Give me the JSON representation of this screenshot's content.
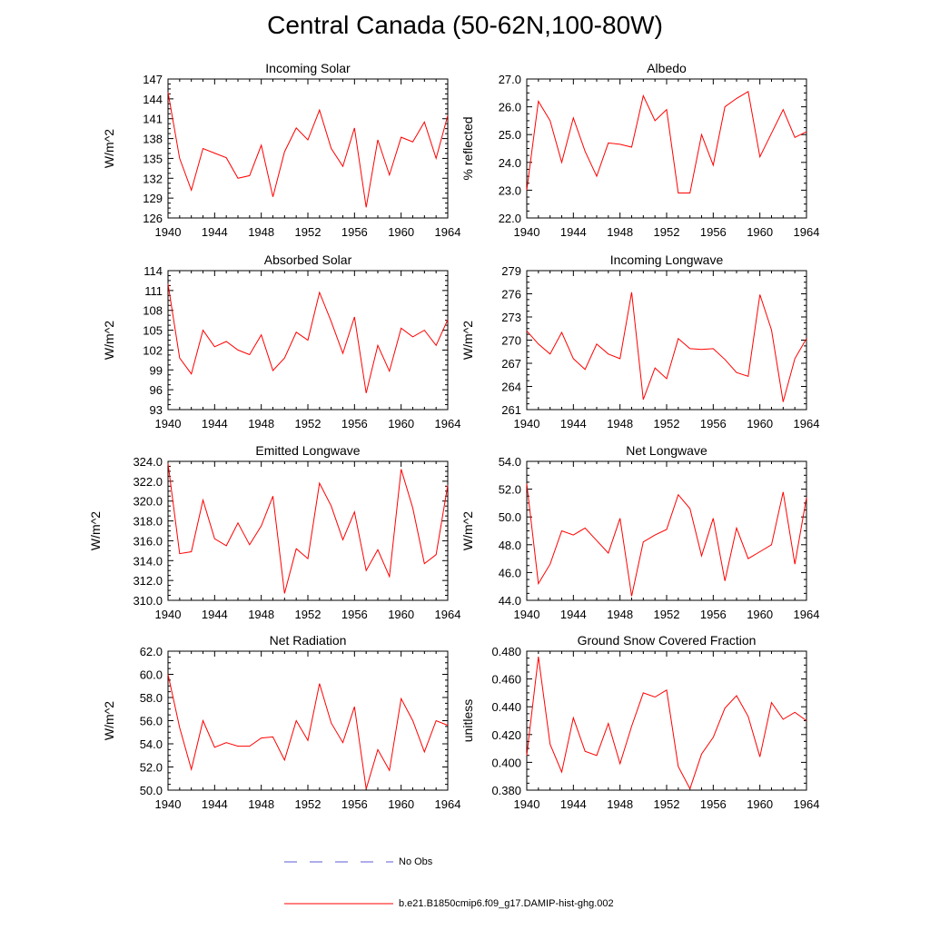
{
  "figure_title": "Central Canada (50-62N,100-80W)",
  "colors": {
    "model_line": "#ff0000",
    "obs_line": "#5b5bd6",
    "axis": "#000000"
  },
  "legend": {
    "obs_label": "No Obs",
    "model_label": "b.e21.B1850cmip6.f09_g17.DAMIP-hist-ghg.002"
  },
  "chart_data": [
    {
      "type": "line",
      "title": "Incoming Solar",
      "ylabel": "W/m^2",
      "xlim": [
        1940,
        1964
      ],
      "ylim": [
        126,
        147
      ],
      "xticks": [
        1940,
        1944,
        1948,
        1952,
        1956,
        1960,
        1964
      ],
      "xtick_labels": [
        "1940",
        "1944",
        "1948",
        "1952",
        "1956",
        "1960",
        "1964"
      ],
      "yticks": [
        126,
        129,
        132,
        135,
        138,
        141,
        144,
        147
      ],
      "ytick_labels": [
        "126",
        "129",
        "132",
        "135",
        "138",
        "141",
        "144",
        "147"
      ],
      "x": [
        1940,
        1941,
        1942,
        1943,
        1944,
        1945,
        1946,
        1947,
        1948,
        1949,
        1950,
        1951,
        1952,
        1953,
        1954,
        1955,
        1956,
        1957,
        1958,
        1959,
        1960,
        1961,
        1962,
        1963,
        1964
      ],
      "series": [
        {
          "values": [
            145.0,
            135.0,
            130.2,
            136.5,
            135.8,
            135.1,
            132.0,
            132.4,
            137.0,
            129.2,
            136.0,
            139.6,
            137.8,
            142.3,
            136.5,
            133.8,
            139.6,
            127.6,
            137.8,
            132.5,
            138.2,
            137.5,
            140.5,
            135.0,
            141.5
          ]
        }
      ]
    },
    {
      "type": "line",
      "title": "Albedo",
      "ylabel": "% reflected",
      "xlim": [
        1940,
        1964
      ],
      "ylim": [
        22.0,
        27.0
      ],
      "xticks": [
        1940,
        1944,
        1948,
        1952,
        1956,
        1960,
        1964
      ],
      "xtick_labels": [
        "1940",
        "1944",
        "1948",
        "1952",
        "1956",
        "1960",
        "1964"
      ],
      "yticks": [
        22.0,
        23.0,
        24.0,
        25.0,
        26.0,
        27.0
      ],
      "ytick_labels": [
        "22.0",
        "23.0",
        "24.0",
        "25.0",
        "26.0",
        "27.0"
      ],
      "x": [
        1940,
        1941,
        1942,
        1943,
        1944,
        1945,
        1946,
        1947,
        1948,
        1949,
        1950,
        1951,
        1952,
        1953,
        1954,
        1955,
        1956,
        1957,
        1958,
        1959,
        1960,
        1961,
        1962,
        1963,
        1964
      ],
      "series": [
        {
          "values": [
            23.0,
            26.2,
            25.5,
            24.0,
            25.6,
            24.4,
            23.5,
            24.7,
            24.65,
            24.55,
            26.4,
            25.5,
            25.9,
            22.9,
            22.9,
            25.0,
            23.9,
            26.0,
            26.3,
            26.55,
            24.2,
            25.05,
            25.9,
            24.9,
            25.1
          ]
        }
      ]
    },
    {
      "type": "line",
      "title": "Absorbed Solar",
      "ylabel": "W/m^2",
      "xlim": [
        1940,
        1964
      ],
      "ylim": [
        93,
        114
      ],
      "xticks": [
        1940,
        1944,
        1948,
        1952,
        1956,
        1960,
        1964
      ],
      "xtick_labels": [
        "1940",
        "1944",
        "1948",
        "1952",
        "1956",
        "1960",
        "1964"
      ],
      "yticks": [
        93,
        96,
        99,
        102,
        105,
        108,
        111,
        114
      ],
      "ytick_labels": [
        "93",
        "96",
        "99",
        "102",
        "105",
        "108",
        "111",
        "114"
      ],
      "x": [
        1940,
        1941,
        1942,
        1943,
        1944,
        1945,
        1946,
        1947,
        1948,
        1949,
        1950,
        1951,
        1952,
        1953,
        1954,
        1955,
        1956,
        1957,
        1958,
        1959,
        1960,
        1961,
        1962,
        1963,
        1964
      ],
      "series": [
        {
          "values": [
            112.0,
            100.8,
            98.4,
            105.0,
            102.5,
            103.3,
            102.0,
            101.3,
            104.3,
            98.9,
            100.8,
            104.7,
            103.5,
            110.7,
            106.3,
            101.5,
            107.0,
            95.5,
            102.7,
            98.8,
            105.3,
            104.0,
            105.0,
            102.7,
            106.6
          ]
        }
      ]
    },
    {
      "type": "line",
      "title": "Incoming Longwave",
      "ylabel": "W/m^2",
      "xlim": [
        1940,
        1964
      ],
      "ylim": [
        261,
        279
      ],
      "xticks": [
        1940,
        1944,
        1948,
        1952,
        1956,
        1960,
        1964
      ],
      "xtick_labels": [
        "1940",
        "1944",
        "1948",
        "1952",
        "1956",
        "1960",
        "1964"
      ],
      "yticks": [
        261,
        264,
        267,
        270,
        273,
        276,
        279
      ],
      "ytick_labels": [
        "261",
        "264",
        "267",
        "270",
        "273",
        "276",
        "279"
      ],
      "x": [
        1940,
        1941,
        1942,
        1943,
        1944,
        1945,
        1946,
        1947,
        1948,
        1949,
        1950,
        1951,
        1952,
        1953,
        1954,
        1955,
        1956,
        1957,
        1958,
        1959,
        1960,
        1961,
        1962,
        1963,
        1964
      ],
      "series": [
        {
          "values": [
            271.2,
            269.5,
            268.2,
            271.0,
            267.6,
            266.2,
            269.5,
            268.2,
            267.6,
            276.2,
            262.3,
            266.4,
            265.0,
            270.2,
            268.9,
            268.8,
            268.9,
            267.5,
            265.8,
            265.3,
            275.9,
            271.3,
            262.0,
            267.6,
            270.2
          ]
        }
      ]
    },
    {
      "type": "line",
      "title": "Emitted Longwave",
      "ylabel": "W/m^2",
      "xlim": [
        1940,
        1964
      ],
      "ylim": [
        310.0,
        324.0
      ],
      "xticks": [
        1940,
        1944,
        1948,
        1952,
        1956,
        1960,
        1964
      ],
      "xtick_labels": [
        "1940",
        "1944",
        "1948",
        "1952",
        "1956",
        "1960",
        "1964"
      ],
      "yticks": [
        310.0,
        312.0,
        314.0,
        316.0,
        318.0,
        320.0,
        322.0,
        324.0
      ],
      "ytick_labels": [
        "310.0",
        "312.0",
        "314.0",
        "316.0",
        "318.0",
        "320.0",
        "322.0",
        "324.0"
      ],
      "x": [
        1940,
        1941,
        1942,
        1943,
        1944,
        1945,
        1946,
        1947,
        1948,
        1949,
        1950,
        1951,
        1952,
        1953,
        1954,
        1955,
        1956,
        1957,
        1958,
        1959,
        1960,
        1961,
        1962,
        1963,
        1964
      ],
      "series": [
        {
          "values": [
            323.8,
            314.7,
            314.9,
            320.1,
            316.2,
            315.5,
            317.8,
            315.6,
            317.5,
            320.5,
            310.7,
            315.2,
            314.2,
            321.8,
            319.5,
            316.1,
            318.9,
            313.0,
            315.1,
            312.4,
            323.2,
            319.3,
            313.7,
            314.6,
            321.6
          ]
        }
      ]
    },
    {
      "type": "line",
      "title": "Net Longwave",
      "ylabel": "W/m^2",
      "xlim": [
        1940,
        1964
      ],
      "ylim": [
        44.0,
        54.0
      ],
      "xticks": [
        1940,
        1944,
        1948,
        1952,
        1956,
        1960,
        1964
      ],
      "xtick_labels": [
        "1940",
        "1944",
        "1948",
        "1952",
        "1956",
        "1960",
        "1964"
      ],
      "yticks": [
        44.0,
        46.0,
        48.0,
        50.0,
        52.0,
        54.0
      ],
      "ytick_labels": [
        "44.0",
        "46.0",
        "48.0",
        "50.0",
        "52.0",
        "54.0"
      ],
      "x": [
        1940,
        1941,
        1942,
        1943,
        1944,
        1945,
        1946,
        1947,
        1948,
        1949,
        1950,
        1951,
        1952,
        1953,
        1954,
        1955,
        1956,
        1957,
        1958,
        1959,
        1960,
        1961,
        1962,
        1963,
        1964
      ],
      "series": [
        {
          "values": [
            52.4,
            45.2,
            46.6,
            49.0,
            48.7,
            49.2,
            48.3,
            47.4,
            49.9,
            44.3,
            48.2,
            48.7,
            49.1,
            51.6,
            50.6,
            47.2,
            49.9,
            45.4,
            49.2,
            47.0,
            47.5,
            48.0,
            51.8,
            46.6,
            51.4
          ]
        }
      ]
    },
    {
      "type": "line",
      "title": "Net Radiation",
      "ylabel": "W/m^2",
      "xlim": [
        1940,
        1964
      ],
      "ylim": [
        50.0,
        62.0
      ],
      "xticks": [
        1940,
        1944,
        1948,
        1952,
        1956,
        1960,
        1964
      ],
      "xtick_labels": [
        "1940",
        "1944",
        "1948",
        "1952",
        "1956",
        "1960",
        "1964"
      ],
      "yticks": [
        50.0,
        52.0,
        54.0,
        56.0,
        58.0,
        60.0,
        62.0
      ],
      "ytick_labels": [
        "50.0",
        "52.0",
        "54.0",
        "56.0",
        "58.0",
        "60.0",
        "62.0"
      ],
      "x": [
        1940,
        1941,
        1942,
        1943,
        1944,
        1945,
        1946,
        1947,
        1948,
        1949,
        1950,
        1951,
        1952,
        1953,
        1954,
        1955,
        1956,
        1957,
        1958,
        1959,
        1960,
        1961,
        1962,
        1963,
        1964
      ],
      "series": [
        {
          "values": [
            60.0,
            55.4,
            51.8,
            56.0,
            53.7,
            54.1,
            53.8,
            53.8,
            54.5,
            54.6,
            52.6,
            56.0,
            54.3,
            59.2,
            55.8,
            54.1,
            57.2,
            50.1,
            53.5,
            51.7,
            57.9,
            56.0,
            53.3,
            56.0,
            55.6
          ]
        }
      ]
    },
    {
      "type": "line",
      "title": "Ground Snow Covered Fraction",
      "ylabel": "unitless",
      "xlim": [
        1940,
        1964
      ],
      "ylim": [
        0.38,
        0.48
      ],
      "xticks": [
        1940,
        1944,
        1948,
        1952,
        1956,
        1960,
        1964
      ],
      "xtick_labels": [
        "1940",
        "1944",
        "1948",
        "1952",
        "1956",
        "1960",
        "1964"
      ],
      "yticks": [
        0.38,
        0.4,
        0.42,
        0.44,
        0.46,
        0.48
      ],
      "ytick_labels": [
        "0.380",
        "0.400",
        "0.420",
        "0.440",
        "0.460",
        "0.480"
      ],
      "x": [
        1940,
        1941,
        1942,
        1943,
        1944,
        1945,
        1946,
        1947,
        1948,
        1949,
        1950,
        1951,
        1952,
        1953,
        1954,
        1955,
        1956,
        1957,
        1958,
        1959,
        1960,
        1961,
        1962,
        1963,
        1964
      ],
      "series": [
        {
          "values": [
            0.405,
            0.476,
            0.413,
            0.393,
            0.432,
            0.408,
            0.405,
            0.428,
            0.399,
            0.426,
            0.45,
            0.447,
            0.452,
            0.397,
            0.381,
            0.406,
            0.418,
            0.439,
            0.448,
            0.433,
            0.404,
            0.443,
            0.431,
            0.436,
            0.43
          ]
        }
      ]
    }
  ]
}
